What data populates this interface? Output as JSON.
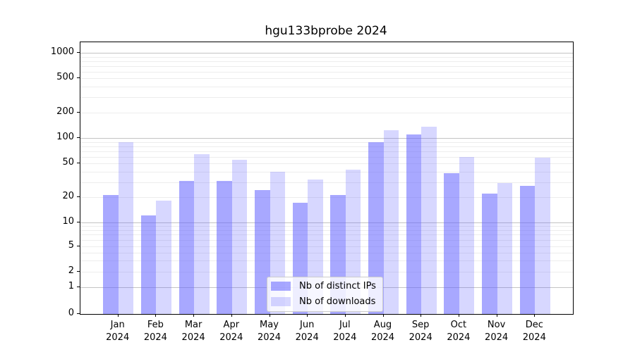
{
  "chart_data": {
    "type": "bar",
    "title": "hgu133bprobe 2024",
    "categories": [
      "Jan",
      "Feb",
      "Mar",
      "Apr",
      "May",
      "Jun",
      "Jul",
      "Aug",
      "Sep",
      "Oct",
      "Nov",
      "Dec"
    ],
    "year": "2024",
    "series": [
      {
        "name": "Nb of distinct IPs",
        "values": [
          21,
          12,
          31,
          31,
          24,
          17,
          21,
          90,
          111,
          38,
          22,
          27
        ]
      },
      {
        "name": "Nb of downloads",
        "values": [
          90,
          18,
          64,
          55,
          40,
          32,
          42,
          123,
          136,
          60,
          29,
          58
        ]
      }
    ],
    "yscale": "log-like",
    "yticks": [
      1000,
      500,
      200,
      100,
      50,
      20,
      10,
      5,
      2,
      1,
      0
    ],
    "major_grid_values": [
      1,
      10,
      100,
      1000
    ],
    "minor_grid_decades": [
      1,
      10,
      100
    ],
    "legend_position": "lower center",
    "grid": true,
    "colors": {
      "distinct_ips_fill": "rgba(102,102,255,0.57)",
      "downloads_fill": "rgba(102,102,255,0.26)",
      "grid_major": "#c3c3c3",
      "grid_minor": "#ededed",
      "axis": "#000000",
      "background": "#ffffff"
    }
  }
}
